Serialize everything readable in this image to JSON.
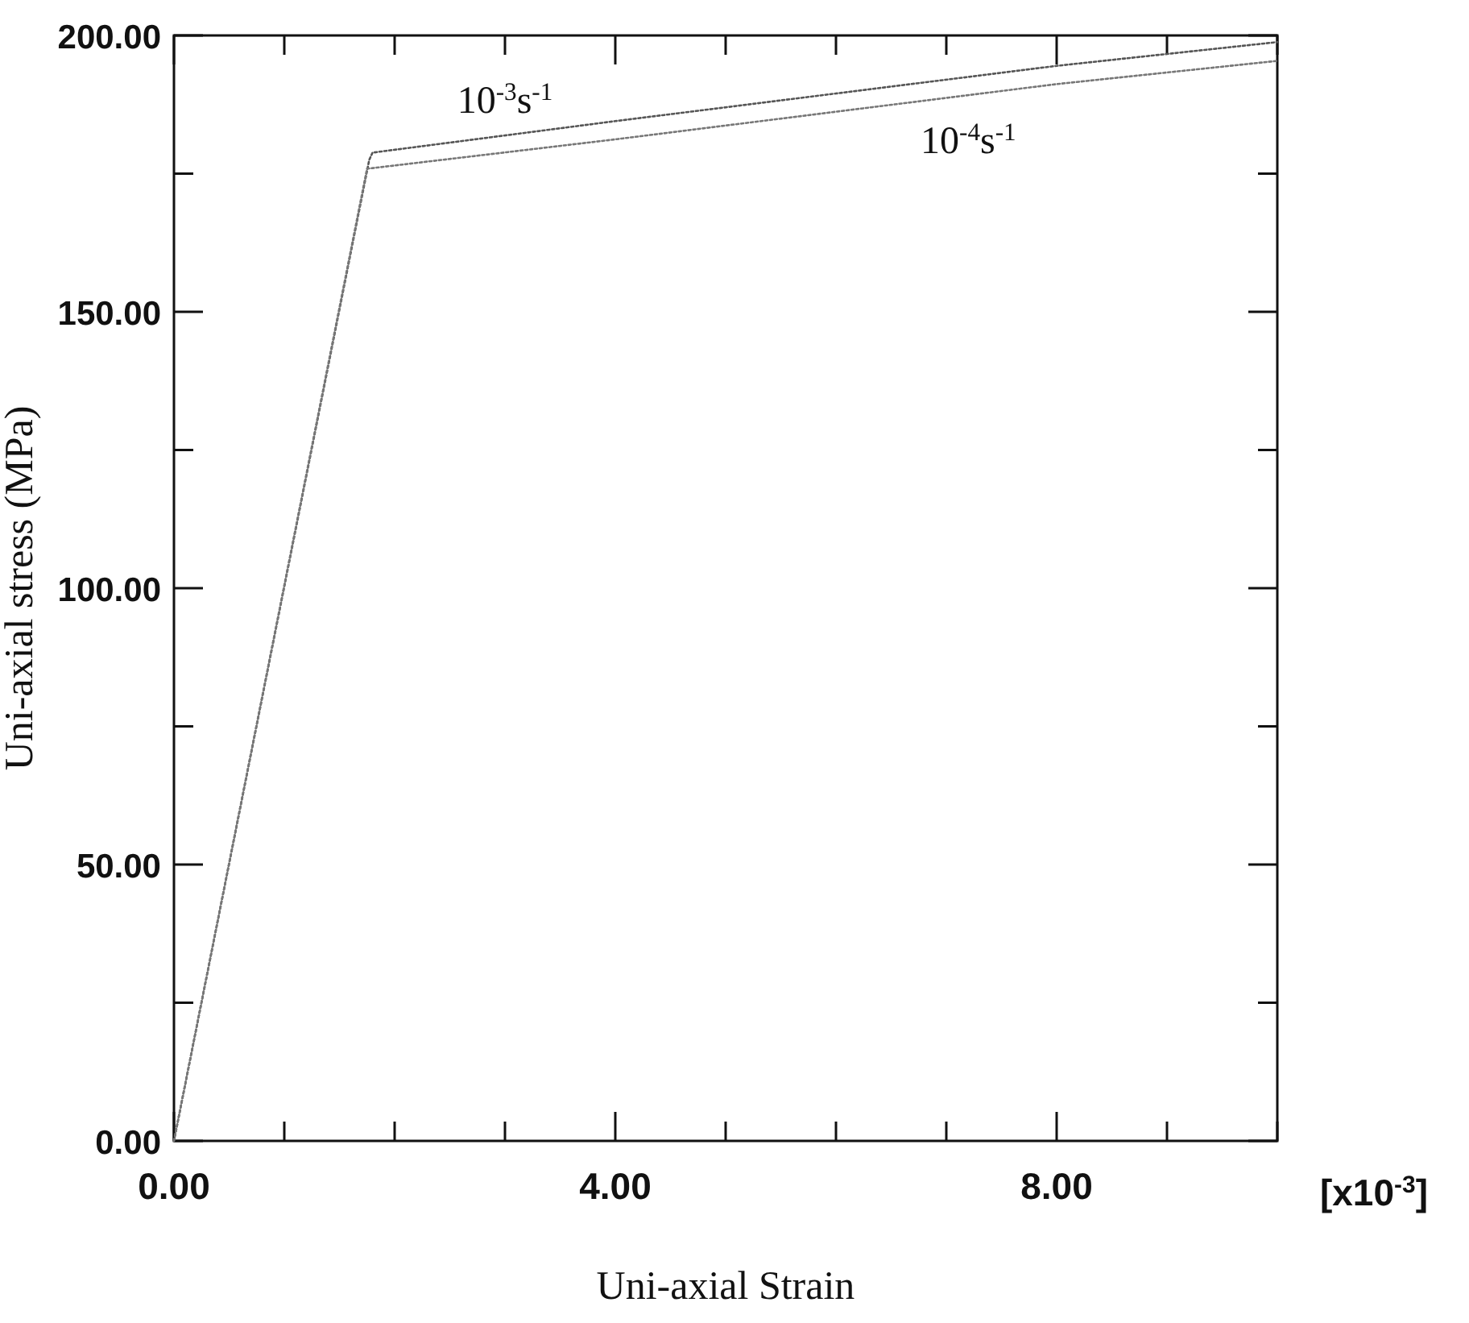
{
  "chart_data": {
    "type": "line",
    "xlabel": "Uni-axial Strain",
    "ylabel": "Uni-axial stress (MPa)",
    "annotations": [
      "[x10$^{-3}$]"
    ],
    "series": [
      {
        "name": "10$^{-3}$s$^{-1}$",
        "color": "#555555",
        "x": [
          0,
          1.77,
          1.8,
          4,
          6,
          8,
          10
        ],
        "values": [
          0,
          177.5,
          178.8,
          184.5,
          189.5,
          194.5,
          198.8
        ]
      },
      {
        "name": "10$^{-4}$s$^{-1}$",
        "color": "#777777",
        "x": [
          0,
          1.75,
          1.8,
          4,
          6,
          8,
          10
        ],
        "values": [
          0,
          175.9,
          176,
          181.2,
          186.2,
          191.2,
          195.4
        ]
      }
    ],
    "xlim": [
      0,
      10
    ],
    "xticks": [
      {
        "value": 0,
        "label": "0.00"
      },
      {
        "value": 1,
        "label": null
      },
      {
        "value": 2,
        "label": null
      },
      {
        "value": 3,
        "label": null
      },
      {
        "value": 4,
        "label": "4.00"
      },
      {
        "value": 5,
        "label": null
      },
      {
        "value": 6,
        "label": null
      },
      {
        "value": 7,
        "label": null
      },
      {
        "value": 8,
        "label": "8.00"
      },
      {
        "value": 9,
        "label": null
      },
      {
        "value": 10,
        "label": null
      }
    ],
    "ylim": [
      0,
      200
    ],
    "yticks": [
      {
        "value": 0,
        "label": "0.00"
      },
      {
        "value": 25,
        "label": null
      },
      {
        "value": 50,
        "label": "50.00"
      },
      {
        "value": 75,
        "label": null
      },
      {
        "value": 100,
        "label": "100.00"
      },
      {
        "value": 125,
        "label": null
      },
      {
        "value": 150,
        "label": "150.00"
      },
      {
        "value": 175,
        "label": null
      },
      {
        "value": 200,
        "label": "200.00"
      }
    ],
    "grid": false,
    "marker": "none",
    "line_style": "dotted"
  }
}
